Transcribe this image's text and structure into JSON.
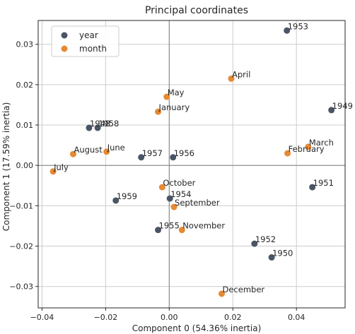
{
  "chart_data": {
    "type": "scatter",
    "title": "Principal coordinates",
    "xlabel": "Component 0 (54.36% inertia)",
    "ylabel": "Component 1 (17.59% inertia)",
    "xlim": [
      -0.0412,
      0.0553
    ],
    "ylim": [
      -0.0353,
      0.0359
    ],
    "x_ticks": [
      -0.04,
      -0.02,
      0.0,
      0.02,
      0.04
    ],
    "x_tick_labels": [
      "−0.04",
      "−0.02",
      "0.00",
      "0.02",
      "0.04"
    ],
    "y_ticks": [
      -0.03,
      -0.02,
      -0.01,
      0.0,
      0.01,
      0.02,
      0.03
    ],
    "y_tick_labels": [
      "−0.03",
      "−0.02",
      "−0.01",
      "0.00",
      "0.01",
      "0.02",
      "0.03"
    ],
    "grid": true,
    "origin_lines": true,
    "legend_position": "top-left",
    "series": [
      {
        "name": "year",
        "color": "#4a5565",
        "points": [
          {
            "label": "1953",
            "x": 0.037,
            "y": 0.0334
          },
          {
            "label": "1949",
            "x": 0.051,
            "y": 0.0137
          },
          {
            "label": "1958",
            "x": -0.0225,
            "y": 0.0093
          },
          {
            "label": "1948",
            "x": -0.0252,
            "y": 0.0093
          },
          {
            "label": "1957",
            "x": -0.0088,
            "y": 0.002
          },
          {
            "label": "1956",
            "x": 0.0012,
            "y": 0.002
          },
          {
            "label": "1951",
            "x": 0.045,
            "y": -0.0054
          },
          {
            "label": "1959",
            "x": -0.0168,
            "y": -0.0087
          },
          {
            "label": "1954",
            "x": 0.0002,
            "y": -0.0082
          },
          {
            "label": "1955",
            "x": -0.0035,
            "y": -0.016
          },
          {
            "label": "1952",
            "x": 0.0268,
            "y": -0.0194
          },
          {
            "label": "1950",
            "x": 0.0322,
            "y": -0.0228
          }
        ]
      },
      {
        "name": "month",
        "color": "#e68a33",
        "points": [
          {
            "label": "April",
            "x": 0.0195,
            "y": 0.0215
          },
          {
            "label": "May",
            "x": -0.0008,
            "y": 0.017
          },
          {
            "label": "January",
            "x": -0.0035,
            "y": 0.0133
          },
          {
            "label": "March",
            "x": 0.0437,
            "y": 0.0046
          },
          {
            "label": "February",
            "x": 0.0372,
            "y": 0.003
          },
          {
            "label": "June",
            "x": -0.0197,
            "y": 0.0034
          },
          {
            "label": "August",
            "x": -0.0302,
            "y": 0.0028
          },
          {
            "label": "July",
            "x": -0.0365,
            "y": -0.0015
          },
          {
            "label": "October",
            "x": -0.0022,
            "y": -0.0054
          },
          {
            "label": "September",
            "x": 0.0015,
            "y": -0.0103
          },
          {
            "label": "November",
            "x": 0.004,
            "y": -0.016
          },
          {
            "label": "December",
            "x": 0.0165,
            "y": -0.0318
          }
        ]
      }
    ]
  }
}
